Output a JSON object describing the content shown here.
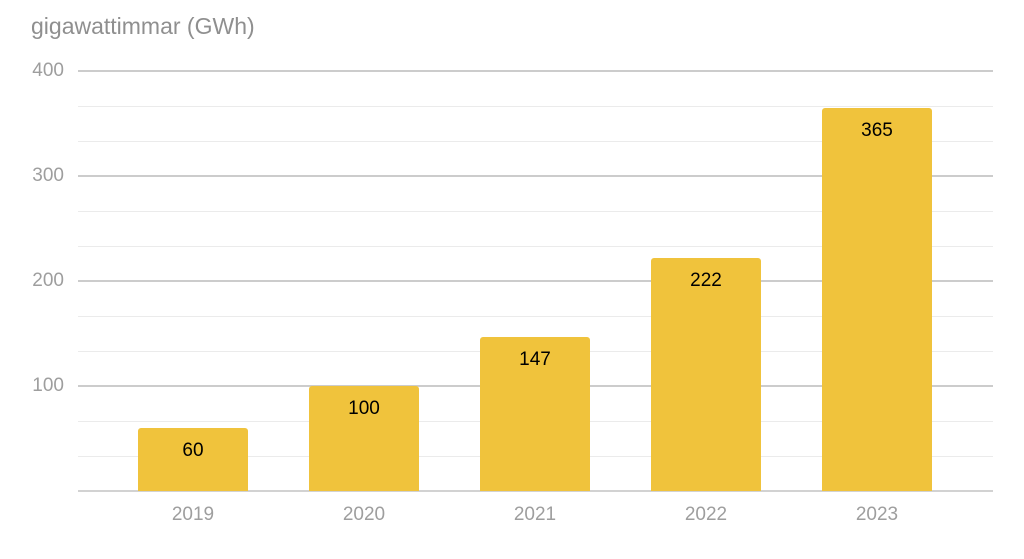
{
  "chart": {
    "title": "gigawattimmar (GWh)"
  },
  "chart_data": {
    "type": "bar",
    "title": "gigawattimmar (GWh)",
    "categories": [
      "2019",
      "2020",
      "2021",
      "2022",
      "2023"
    ],
    "values": [
      60,
      100,
      147,
      222,
      365
    ],
    "xlabel": "",
    "ylabel": "gigawattimmar (GWh)",
    "ylim": [
      0,
      400
    ],
    "y_major_ticks": [
      100,
      200,
      300,
      400
    ],
    "y_minor_divisions_per_major": 3,
    "grid": "on",
    "legend_position": "none",
    "colors": {
      "bar": "#F0C33C",
      "title_text": "#8F8F8F",
      "axis_text": "#9E9E9E",
      "value_label_text": "#000000",
      "major_gridline": "#CCCCCC",
      "minor_gridline": "#EBEBEB",
      "axis_line": "#D2D2D2",
      "background": "#FFFFFF"
    }
  }
}
